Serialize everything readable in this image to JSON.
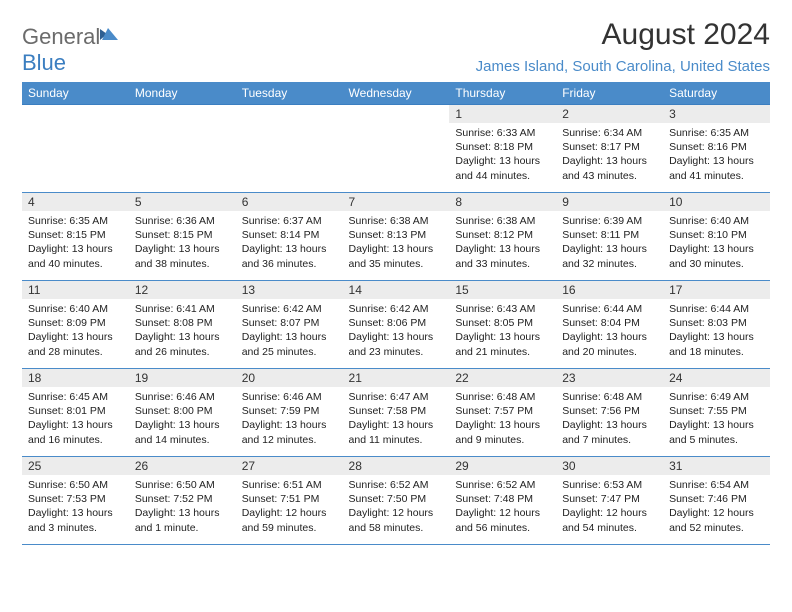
{
  "brand": {
    "name_part1": "General",
    "name_part2": "Blue"
  },
  "title": "August 2024",
  "location": "James Island, South Carolina, United States",
  "colors": {
    "header_bg": "#4a8bc9",
    "header_text": "#ffffff",
    "day_number_bg": "#ececec",
    "text": "#222222",
    "brand_gray": "#6b6b6b",
    "brand_blue": "#3b7ec0",
    "location_color": "#4a8bc9",
    "row_border": "#4a8bc9"
  },
  "day_headers": [
    "Sunday",
    "Monday",
    "Tuesday",
    "Wednesday",
    "Thursday",
    "Friday",
    "Saturday"
  ],
  "weeks": [
    [
      {
        "empty": true
      },
      {
        "empty": true
      },
      {
        "empty": true
      },
      {
        "empty": true
      },
      {
        "n": "1",
        "sunrise": "Sunrise: 6:33 AM",
        "sunset": "Sunset: 8:18 PM",
        "daylight1": "Daylight: 13 hours",
        "daylight2": "and 44 minutes."
      },
      {
        "n": "2",
        "sunrise": "Sunrise: 6:34 AM",
        "sunset": "Sunset: 8:17 PM",
        "daylight1": "Daylight: 13 hours",
        "daylight2": "and 43 minutes."
      },
      {
        "n": "3",
        "sunrise": "Sunrise: 6:35 AM",
        "sunset": "Sunset: 8:16 PM",
        "daylight1": "Daylight: 13 hours",
        "daylight2": "and 41 minutes."
      }
    ],
    [
      {
        "n": "4",
        "sunrise": "Sunrise: 6:35 AM",
        "sunset": "Sunset: 8:15 PM",
        "daylight1": "Daylight: 13 hours",
        "daylight2": "and 40 minutes."
      },
      {
        "n": "5",
        "sunrise": "Sunrise: 6:36 AM",
        "sunset": "Sunset: 8:15 PM",
        "daylight1": "Daylight: 13 hours",
        "daylight2": "and 38 minutes."
      },
      {
        "n": "6",
        "sunrise": "Sunrise: 6:37 AM",
        "sunset": "Sunset: 8:14 PM",
        "daylight1": "Daylight: 13 hours",
        "daylight2": "and 36 minutes."
      },
      {
        "n": "7",
        "sunrise": "Sunrise: 6:38 AM",
        "sunset": "Sunset: 8:13 PM",
        "daylight1": "Daylight: 13 hours",
        "daylight2": "and 35 minutes."
      },
      {
        "n": "8",
        "sunrise": "Sunrise: 6:38 AM",
        "sunset": "Sunset: 8:12 PM",
        "daylight1": "Daylight: 13 hours",
        "daylight2": "and 33 minutes."
      },
      {
        "n": "9",
        "sunrise": "Sunrise: 6:39 AM",
        "sunset": "Sunset: 8:11 PM",
        "daylight1": "Daylight: 13 hours",
        "daylight2": "and 32 minutes."
      },
      {
        "n": "10",
        "sunrise": "Sunrise: 6:40 AM",
        "sunset": "Sunset: 8:10 PM",
        "daylight1": "Daylight: 13 hours",
        "daylight2": "and 30 minutes."
      }
    ],
    [
      {
        "n": "11",
        "sunrise": "Sunrise: 6:40 AM",
        "sunset": "Sunset: 8:09 PM",
        "daylight1": "Daylight: 13 hours",
        "daylight2": "and 28 minutes."
      },
      {
        "n": "12",
        "sunrise": "Sunrise: 6:41 AM",
        "sunset": "Sunset: 8:08 PM",
        "daylight1": "Daylight: 13 hours",
        "daylight2": "and 26 minutes."
      },
      {
        "n": "13",
        "sunrise": "Sunrise: 6:42 AM",
        "sunset": "Sunset: 8:07 PM",
        "daylight1": "Daylight: 13 hours",
        "daylight2": "and 25 minutes."
      },
      {
        "n": "14",
        "sunrise": "Sunrise: 6:42 AM",
        "sunset": "Sunset: 8:06 PM",
        "daylight1": "Daylight: 13 hours",
        "daylight2": "and 23 minutes."
      },
      {
        "n": "15",
        "sunrise": "Sunrise: 6:43 AM",
        "sunset": "Sunset: 8:05 PM",
        "daylight1": "Daylight: 13 hours",
        "daylight2": "and 21 minutes."
      },
      {
        "n": "16",
        "sunrise": "Sunrise: 6:44 AM",
        "sunset": "Sunset: 8:04 PM",
        "daylight1": "Daylight: 13 hours",
        "daylight2": "and 20 minutes."
      },
      {
        "n": "17",
        "sunrise": "Sunrise: 6:44 AM",
        "sunset": "Sunset: 8:03 PM",
        "daylight1": "Daylight: 13 hours",
        "daylight2": "and 18 minutes."
      }
    ],
    [
      {
        "n": "18",
        "sunrise": "Sunrise: 6:45 AM",
        "sunset": "Sunset: 8:01 PM",
        "daylight1": "Daylight: 13 hours",
        "daylight2": "and 16 minutes."
      },
      {
        "n": "19",
        "sunrise": "Sunrise: 6:46 AM",
        "sunset": "Sunset: 8:00 PM",
        "daylight1": "Daylight: 13 hours",
        "daylight2": "and 14 minutes."
      },
      {
        "n": "20",
        "sunrise": "Sunrise: 6:46 AM",
        "sunset": "Sunset: 7:59 PM",
        "daylight1": "Daylight: 13 hours",
        "daylight2": "and 12 minutes."
      },
      {
        "n": "21",
        "sunrise": "Sunrise: 6:47 AM",
        "sunset": "Sunset: 7:58 PM",
        "daylight1": "Daylight: 13 hours",
        "daylight2": "and 11 minutes."
      },
      {
        "n": "22",
        "sunrise": "Sunrise: 6:48 AM",
        "sunset": "Sunset: 7:57 PM",
        "daylight1": "Daylight: 13 hours",
        "daylight2": "and 9 minutes."
      },
      {
        "n": "23",
        "sunrise": "Sunrise: 6:48 AM",
        "sunset": "Sunset: 7:56 PM",
        "daylight1": "Daylight: 13 hours",
        "daylight2": "and 7 minutes."
      },
      {
        "n": "24",
        "sunrise": "Sunrise: 6:49 AM",
        "sunset": "Sunset: 7:55 PM",
        "daylight1": "Daylight: 13 hours",
        "daylight2": "and 5 minutes."
      }
    ],
    [
      {
        "n": "25",
        "sunrise": "Sunrise: 6:50 AM",
        "sunset": "Sunset: 7:53 PM",
        "daylight1": "Daylight: 13 hours",
        "daylight2": "and 3 minutes."
      },
      {
        "n": "26",
        "sunrise": "Sunrise: 6:50 AM",
        "sunset": "Sunset: 7:52 PM",
        "daylight1": "Daylight: 13 hours",
        "daylight2": "and 1 minute."
      },
      {
        "n": "27",
        "sunrise": "Sunrise: 6:51 AM",
        "sunset": "Sunset: 7:51 PM",
        "daylight1": "Daylight: 12 hours",
        "daylight2": "and 59 minutes."
      },
      {
        "n": "28",
        "sunrise": "Sunrise: 6:52 AM",
        "sunset": "Sunset: 7:50 PM",
        "daylight1": "Daylight: 12 hours",
        "daylight2": "and 58 minutes."
      },
      {
        "n": "29",
        "sunrise": "Sunrise: 6:52 AM",
        "sunset": "Sunset: 7:48 PM",
        "daylight1": "Daylight: 12 hours",
        "daylight2": "and 56 minutes."
      },
      {
        "n": "30",
        "sunrise": "Sunrise: 6:53 AM",
        "sunset": "Sunset: 7:47 PM",
        "daylight1": "Daylight: 12 hours",
        "daylight2": "and 54 minutes."
      },
      {
        "n": "31",
        "sunrise": "Sunrise: 6:54 AM",
        "sunset": "Sunset: 7:46 PM",
        "daylight1": "Daylight: 12 hours",
        "daylight2": "and 52 minutes."
      }
    ]
  ]
}
